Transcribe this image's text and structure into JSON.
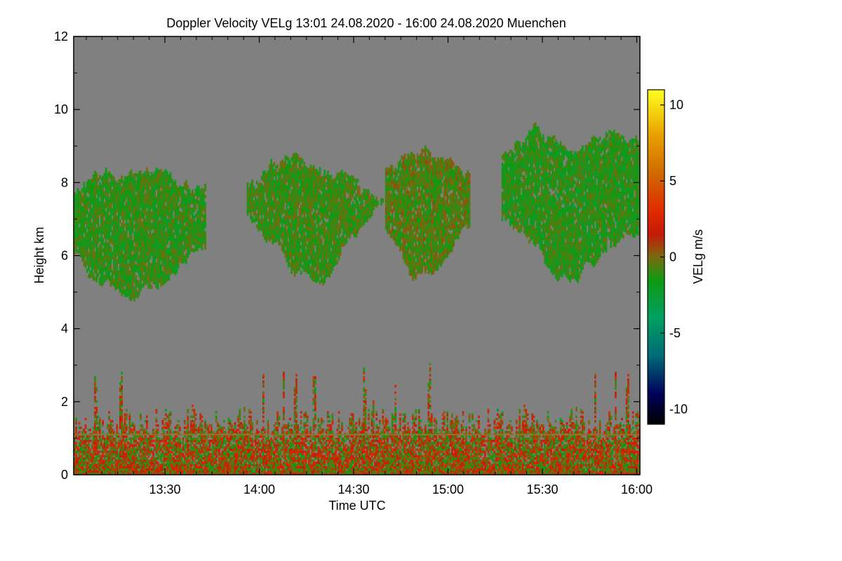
{
  "chart_data": {
    "type": "heatmap",
    "title": "Doppler Velocity VELg   13:01 24.08.2020 - 16:00 24.08.2020 Muenchen",
    "xlabel": "Time UTC",
    "ylabel": "Height km",
    "colorbar_label": "VELg m/s",
    "x_range_minutes": [
      781,
      961
    ],
    "x_ticks": [
      {
        "minute": 810,
        "label": "13:30"
      },
      {
        "minute": 840,
        "label": "14:00"
      },
      {
        "minute": 870,
        "label": "14:30"
      },
      {
        "minute": 900,
        "label": "15:00"
      },
      {
        "minute": 930,
        "label": "15:30"
      },
      {
        "minute": 960,
        "label": "16:00"
      }
    ],
    "ylim": [
      0,
      12
    ],
    "y_ticks": [
      0,
      2,
      4,
      6,
      8,
      10,
      12
    ],
    "colorbar_range": [
      -11,
      11
    ],
    "colorbar_ticks": [
      10,
      5,
      0,
      -5,
      -10
    ],
    "colormap_stops": [
      {
        "value": -11,
        "color": "#000000"
      },
      {
        "value": -9,
        "color": "#00005a"
      },
      {
        "value": -6.5,
        "color": "#006a78"
      },
      {
        "value": -4,
        "color": "#00a060"
      },
      {
        "value": -1.5,
        "color": "#109a10"
      },
      {
        "value": 0,
        "color": "#7a6a10"
      },
      {
        "value": 1.5,
        "color": "#c41a08"
      },
      {
        "value": 3,
        "color": "#e02a00"
      },
      {
        "value": 5.5,
        "color": "#d06a00"
      },
      {
        "value": 8,
        "color": "#e8a000"
      },
      {
        "value": 11,
        "color": "#ffff20"
      }
    ],
    "background_color": "#808080",
    "echo_regions": [
      {
        "name": "upper cloud layer 1",
        "t_start": 781,
        "t_end": 823,
        "z_base_km": 4.8,
        "z_top_km": 8.3,
        "mean_velocity": -1.2
      },
      {
        "name": "upper cloud layer 2",
        "t_start": 836,
        "t_end": 880,
        "z_base_km": 5.8,
        "z_top_km": 8.5,
        "mean_velocity": -1.0
      },
      {
        "name": "upper cloud layer 3",
        "t_start": 880,
        "t_end": 907,
        "z_base_km": 5.5,
        "z_top_km": 9.0,
        "mean_velocity": -0.6
      },
      {
        "name": "upper cloud layer 4",
        "t_start": 917,
        "t_end": 961,
        "z_base_km": 5.8,
        "z_top_km": 9.2,
        "mean_velocity": -1.3
      },
      {
        "name": "boundary layer echoes",
        "t_start": 781,
        "t_end": 961,
        "z_base_km": 0.0,
        "z_top_km": 3.3,
        "mean_velocity": 0.5
      }
    ]
  }
}
